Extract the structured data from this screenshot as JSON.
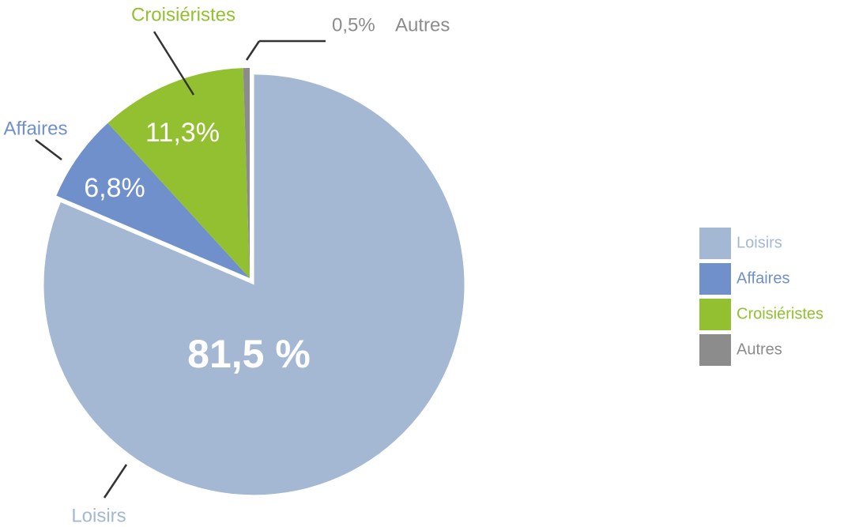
{
  "chart_data": {
    "type": "pie",
    "categories": [
      "Loisirs",
      "Affaires",
      "Croisiéristes",
      "Autres"
    ],
    "values": [
      81.5,
      6.8,
      11.3,
      0.5
    ],
    "value_labels": [
      "81,5 %",
      "6,8%",
      "11,3%",
      "0,5%"
    ],
    "colors": [
      "#a4b8d4",
      "#7090cc",
      "#92c030",
      "#8c8c8c"
    ],
    "legend": "right"
  }
}
